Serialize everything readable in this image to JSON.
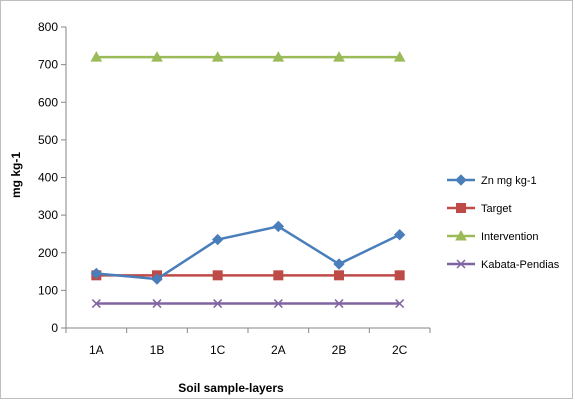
{
  "chart_data": {
    "type": "line",
    "categories": [
      "1A",
      "1B",
      "1C",
      "2A",
      "2B",
      "2C"
    ],
    "series": [
      {
        "name": "Zn  mg kg-1",
        "values": [
          145,
          130,
          235,
          270,
          170,
          248
        ],
        "color": "#4a7ebb",
        "marker": "diamond"
      },
      {
        "name": "Target",
        "values": [
          140,
          140,
          140,
          140,
          140,
          140
        ],
        "color": "#be4b48",
        "marker": "square"
      },
      {
        "name": "Intervention",
        "values": [
          720,
          720,
          720,
          720,
          720,
          720
        ],
        "color": "#9bbb59",
        "marker": "triangle"
      },
      {
        "name": "Kabata-Pendias",
        "values": [
          65,
          65,
          65,
          65,
          65,
          65
        ],
        "color": "#8064a2",
        "marker": "x"
      }
    ],
    "xlabel": "Soil sample-layers",
    "ylabel": "mg  kg-1",
    "ylim": [
      0,
      800
    ],
    "yticks": [
      0,
      100,
      200,
      300,
      400,
      500,
      600,
      700,
      800
    ],
    "grid": false,
    "legend": "right"
  }
}
